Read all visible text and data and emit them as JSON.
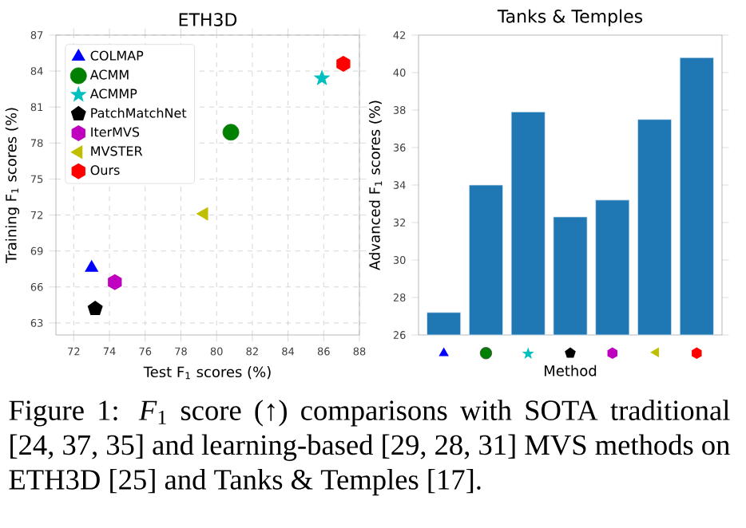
{
  "chart_data": [
    {
      "type": "scatter",
      "title": "ETH3D",
      "xlabel": "Test F$_{1}$ scores (%)",
      "ylabel": "Training F$_{1}$ scores (%)",
      "xlim": [
        71,
        88
      ],
      "ylim": [
        62,
        87
      ],
      "xticks": [
        72,
        74,
        76,
        78,
        80,
        82,
        84,
        86,
        88
      ],
      "yticks": [
        63,
        66,
        69,
        72,
        75,
        78,
        81,
        84,
        87
      ],
      "grid": true,
      "legend": "top left",
      "series": [
        {
          "name": "COLMAP",
          "color": "#0000ff",
          "marker": "triangle",
          "x": [
            73.0
          ],
          "values": [
            67.6
          ]
        },
        {
          "name": "ACMM",
          "color": "#008000",
          "marker": "circle",
          "x": [
            80.8
          ],
          "values": [
            78.9
          ]
        },
        {
          "name": "ACMMP",
          "color": "#00bfbf",
          "marker": "star",
          "x": [
            85.9
          ],
          "values": [
            83.4
          ]
        },
        {
          "name": "PatchMatchNet",
          "color": "#000000",
          "x": [
            73.2
          ],
          "values": [
            64.2
          ]
        },
        {
          "name": "IterMVS",
          "color": "#bf00bf",
          "x": [
            74.3
          ],
          "values": [
            66.4
          ]
        },
        {
          "name": "MVSTER",
          "color": "#bfbf00",
          "marker": "triangle-left",
          "x": [
            79.3
          ],
          "values": [
            72.1
          ]
        },
        {
          "name": "Ours",
          "color": "#ff0000",
          "x": [
            87.1
          ],
          "values": [
            84.6
          ]
        }
      ]
    },
    {
      "type": "bar",
      "title": "Tanks & Temples",
      "xlabel": "Method",
      "ylabel": "Advanced F$_{1}$ scores (%)",
      "categories": [
        null,
        null,
        null,
        null,
        null,
        null,
        null
      ],
      "values": [
        27.2,
        34.0,
        37.9,
        32.3,
        33.2,
        37.5,
        40.8
      ],
      "color": "#1f77b4",
      "ylim": [
        26,
        42
      ],
      "yticks": [
        26,
        28,
        30,
        32,
        34,
        36,
        38,
        40,
        42
      ],
      "annotations": [
        "Figure 1: *F*$_{1}$ score (↑) comparisons with SOTA traditional [24, 37, 35] and learning-based [29, 28, 31] MVS methods on ETH3D [25] and Tanks & Temples [17]."
      ]
    }
  ]
}
